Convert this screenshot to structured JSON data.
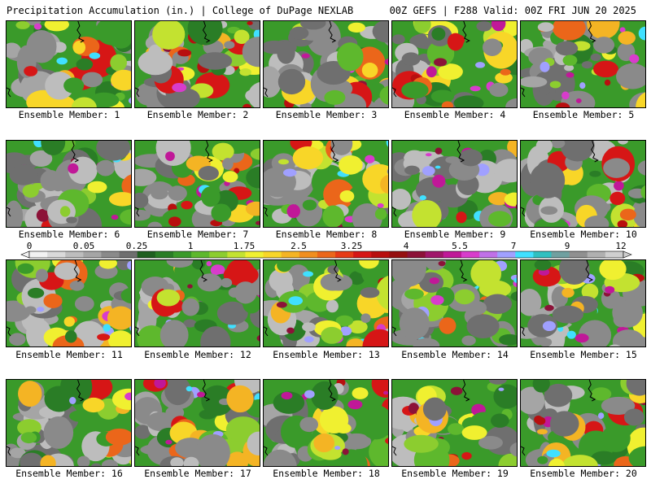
{
  "header": {
    "left_title": "Precipitation Accumulation (in.) | College of DuPage NEXLAB",
    "right_title": "00Z GEFS | F288 Valid: 00Z FRI JUN 20 2025"
  },
  "panel_label_prefix": "Ensemble Member: ",
  "members": [
    1,
    2,
    3,
    4,
    5,
    6,
    7,
    8,
    9,
    10,
    11,
    12,
    13,
    14,
    15,
    16,
    17,
    18,
    19,
    20
  ],
  "legend": {
    "ticks": [
      "0",
      "0.05",
      "0.25",
      "1",
      "1.75",
      "2.5",
      "3.25",
      "4",
      "5.5",
      "7",
      "9",
      "12"
    ],
    "colors": [
      "#f2f2f2",
      "#d9d9d9",
      "#bdbdbd",
      "#a5a5a5",
      "#8a8a8a",
      "#6f6f6f",
      "#1f5f1f",
      "#2a7d26",
      "#3a9a2a",
      "#5eb82d",
      "#8ccd2f",
      "#c3e230",
      "#f0f030",
      "#f8d628",
      "#f4b424",
      "#f08e1f",
      "#eb661a",
      "#e63a16",
      "#d61616",
      "#b80f0f",
      "#961010",
      "#8c1238",
      "#a0176a",
      "#c01898",
      "#d83ccc",
      "#c070e8",
      "#a0a0ff",
      "#40e0ff",
      "#30c0c0",
      "#70a0a0",
      "#909090",
      "#b0b0b0",
      "#cfcfcf"
    ]
  }
}
